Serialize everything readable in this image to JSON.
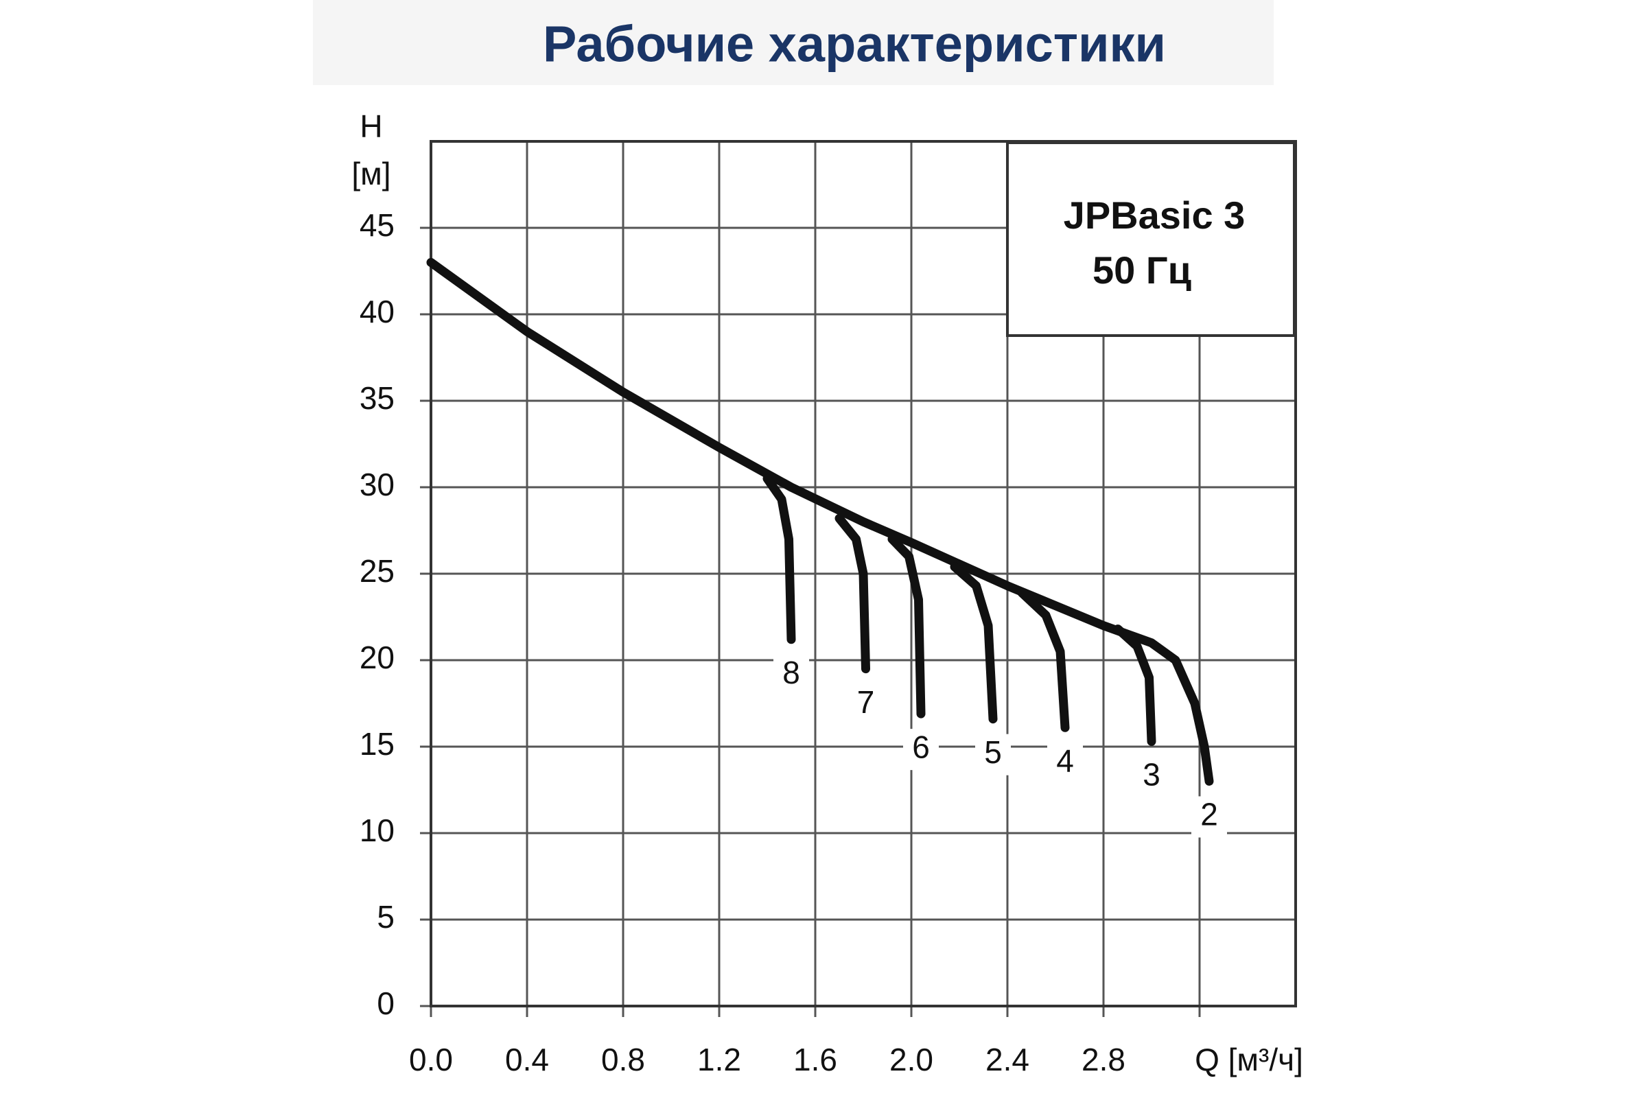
{
  "chart_data": {
    "type": "line",
    "title": "Рабочие характеристики",
    "y_label": "H",
    "y_unit": "[м]",
    "x_label": "Q [м³/ч]",
    "annotation": [
      "JPBasic 3",
      "50 Гц"
    ],
    "xlim": [
      0,
      3.6
    ],
    "ylim": [
      0,
      50
    ],
    "xticks": [
      {
        "value": 0,
        "label": "0.0"
      },
      0.4,
      0.8,
      1.2,
      1.6,
      {
        "value": 2,
        "label": "2.0"
      },
      2.4,
      2.8,
      {
        "value": 3.2,
        "label": null
      }
    ],
    "yticks": [
      0,
      5,
      10,
      15,
      20,
      25,
      30,
      35,
      40,
      45
    ],
    "grid": true,
    "color": "#111111",
    "series": [
      {
        "name": "2",
        "x": [
          0,
          0.4,
          0.8,
          1.2,
          1.5,
          1.8,
          2.0,
          2.4,
          2.8,
          3.0,
          3.1,
          3.18,
          3.22,
          3.24
        ],
        "values": [
          43,
          39,
          35.5,
          32.3,
          30,
          28,
          26.8,
          24.3,
          22,
          21,
          20,
          17.5,
          15,
          13
        ]
      },
      {
        "name": "8",
        "x": [
          1.4,
          1.46,
          1.49,
          1.5
        ],
        "values": [
          30.5,
          29.3,
          27,
          21.2
        ]
      },
      {
        "name": "7",
        "x": [
          1.7,
          1.77,
          1.8,
          1.81
        ],
        "values": [
          28.2,
          27,
          25,
          19.5
        ]
      },
      {
        "name": "6",
        "x": [
          1.92,
          1.99,
          2.03,
          2.04
        ],
        "values": [
          27,
          26,
          23.5,
          16.9
        ]
      },
      {
        "name": "5",
        "x": [
          2.18,
          2.27,
          2.32,
          2.34
        ],
        "values": [
          25.4,
          24.3,
          22,
          16.6
        ]
      },
      {
        "name": "4",
        "x": [
          2.46,
          2.56,
          2.62,
          2.64
        ],
        "values": [
          23.9,
          22.6,
          20.5,
          16.1
        ]
      },
      {
        "name": "3",
        "x": [
          2.86,
          2.94,
          2.99,
          3.0
        ],
        "values": [
          21.8,
          20.8,
          19,
          15.3
        ]
      }
    ]
  }
}
